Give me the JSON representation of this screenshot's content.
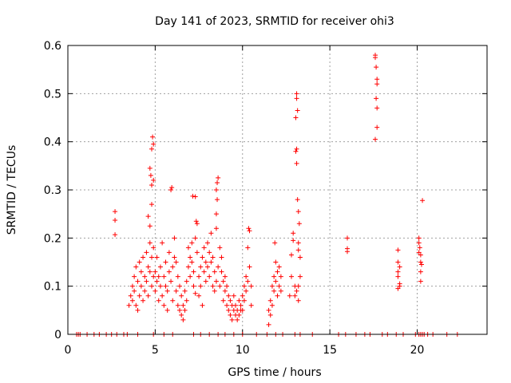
{
  "chart_data": {
    "type": "scatter",
    "title": "Day 141 of 2023, SRMTID for receiver ohi3",
    "xlabel": "GPS time / hours",
    "ylabel": "SRMTID / TECUs",
    "xlim": [
      0,
      24
    ],
    "ylim": [
      0,
      0.6
    ],
    "xticks": [
      0,
      5,
      10,
      15,
      20
    ],
    "yticks": [
      0,
      0.1,
      0.2,
      0.3,
      0.4,
      0.5,
      0.6
    ],
    "grid": true,
    "marker": "plus",
    "color": "#ff0000",
    "series": [
      {
        "name": "SRMTID",
        "points": [
          [
            0.5,
            0
          ],
          [
            0.6,
            0
          ],
          [
            0.7,
            0
          ],
          [
            1.1,
            0
          ],
          [
            1.5,
            0
          ],
          [
            1.8,
            0
          ],
          [
            2.2,
            0
          ],
          [
            2.5,
            0
          ],
          [
            2.8,
            0
          ],
          [
            3.2,
            0
          ],
          [
            3.4,
            0
          ],
          [
            4.0,
            0
          ],
          [
            4.9,
            0
          ],
          [
            5.5,
            0
          ],
          [
            6.0,
            0
          ],
          [
            7.2,
            0
          ],
          [
            7.6,
            0
          ],
          [
            8.1,
            0
          ],
          [
            8.6,
            0
          ],
          [
            9.0,
            0
          ],
          [
            9.5,
            0
          ],
          [
            10.0,
            0
          ],
          [
            10.8,
            0
          ],
          [
            11.4,
            0
          ],
          [
            11.9,
            0
          ],
          [
            12.3,
            0
          ],
          [
            13.0,
            0
          ],
          [
            13.3,
            0
          ],
          [
            14.0,
            0
          ],
          [
            15.5,
            0
          ],
          [
            15.9,
            0
          ],
          [
            16.5,
            0
          ],
          [
            17.0,
            0
          ],
          [
            17.3,
            0
          ],
          [
            18.0,
            0
          ],
          [
            18.3,
            0
          ],
          [
            18.8,
            0
          ],
          [
            19.2,
            0
          ],
          [
            19.9,
            0
          ],
          [
            20.1,
            0
          ],
          [
            20.2,
            0
          ],
          [
            20.3,
            0
          ],
          [
            20.4,
            0
          ],
          [
            20.6,
            0
          ],
          [
            20.9,
            0
          ],
          [
            21.7,
            0
          ],
          [
            22.3,
            0
          ],
          [
            2.7,
            0.255
          ],
          [
            2.7,
            0.237
          ],
          [
            2.7,
            0.207
          ],
          [
            3.5,
            0.06
          ],
          [
            3.6,
            0.08
          ],
          [
            3.7,
            0.07
          ],
          [
            3.7,
            0.1
          ],
          [
            3.8,
            0.09
          ],
          [
            3.8,
            0.12
          ],
          [
            3.9,
            0.06
          ],
          [
            3.9,
            0.14
          ],
          [
            4.0,
            0.11
          ],
          [
            4.0,
            0.05
          ],
          [
            4.1,
            0.08
          ],
          [
            4.1,
            0.15
          ],
          [
            4.2,
            0.1
          ],
          [
            4.2,
            0.13
          ],
          [
            4.3,
            0.07
          ],
          [
            4.3,
            0.16
          ],
          [
            4.4,
            0.12
          ],
          [
            4.4,
            0.09
          ],
          [
            4.5,
            0.11
          ],
          [
            4.5,
            0.17
          ],
          [
            4.6,
            0.14
          ],
          [
            4.6,
            0.08
          ],
          [
            4.7,
            0.13
          ],
          [
            4.7,
            0.19
          ],
          [
            4.8,
            0.16
          ],
          [
            4.8,
            0.1
          ],
          [
            4.9,
            0.12
          ],
          [
            4.9,
            0.18
          ],
          [
            4.6,
            0.245
          ],
          [
            4.7,
            0.345
          ],
          [
            4.75,
            0.33
          ],
          [
            4.8,
            0.31
          ],
          [
            4.8,
            0.385
          ],
          [
            4.85,
            0.41
          ],
          [
            4.9,
            0.395
          ],
          [
            4.9,
            0.32
          ],
          [
            4.8,
            0.27
          ],
          [
            4.7,
            0.225
          ],
          [
            5.0,
            0.13
          ],
          [
            5.0,
            0.09
          ],
          [
            5.1,
            0.11
          ],
          [
            5.1,
            0.16
          ],
          [
            5.2,
            0.07
          ],
          [
            5.2,
            0.12
          ],
          [
            5.3,
            0.1
          ],
          [
            5.3,
            0.14
          ],
          [
            5.4,
            0.08
          ],
          [
            5.4,
            0.19
          ],
          [
            5.5,
            0.12
          ],
          [
            5.5,
            0.06
          ],
          [
            5.6,
            0.1
          ],
          [
            5.6,
            0.15
          ],
          [
            5.7,
            0.05
          ],
          [
            5.7,
            0.09
          ],
          [
            5.8,
            0.17
          ],
          [
            5.8,
            0.13
          ],
          [
            5.9,
            0.3
          ],
          [
            5.95,
            0.305
          ],
          [
            5.9,
            0.11
          ],
          [
            6.0,
            0.07
          ],
          [
            6.0,
            0.14
          ],
          [
            6.1,
            0.16
          ],
          [
            6.1,
            0.2
          ],
          [
            6.2,
            0.09
          ],
          [
            6.2,
            0.15
          ],
          [
            6.3,
            0.12
          ],
          [
            6.3,
            0.06
          ],
          [
            6.4,
            0.1
          ],
          [
            6.4,
            0.05
          ],
          [
            6.5,
            0.08
          ],
          [
            6.5,
            0.04
          ],
          [
            6.6,
            0.06
          ],
          [
            6.6,
            0.03
          ],
          [
            6.7,
            0.09
          ],
          [
            6.7,
            0.05
          ],
          [
            6.8,
            0.11
          ],
          [
            6.8,
            0.07
          ],
          [
            6.9,
            0.14
          ],
          [
            6.9,
            0.18
          ],
          [
            7.0,
            0.12
          ],
          [
            7.0,
            0.16
          ],
          [
            7.1,
            0.19
          ],
          [
            7.1,
            0.15
          ],
          [
            7.2,
            0.1
          ],
          [
            7.2,
            0.13
          ],
          [
            7.3,
            0.085
          ],
          [
            7.3,
            0.2
          ],
          [
            7.35,
            0.235
          ],
          [
            7.4,
            0.23
          ],
          [
            7.4,
            0.17
          ],
          [
            7.5,
            0.12
          ],
          [
            7.5,
            0.08
          ],
          [
            7.6,
            0.14
          ],
          [
            7.6,
            0.1
          ],
          [
            7.7,
            0.06
          ],
          [
            7.7,
            0.16
          ],
          [
            7.8,
            0.18
          ],
          [
            7.8,
            0.13
          ],
          [
            7.9,
            0.11
          ],
          [
            7.9,
            0.15
          ],
          [
            8.0,
            0.19
          ],
          [
            8.0,
            0.14
          ],
          [
            8.1,
            0.12
          ],
          [
            8.1,
            0.17
          ],
          [
            8.2,
            0.15
          ],
          [
            8.2,
            0.21
          ],
          [
            8.3,
            0.1
          ],
          [
            8.3,
            0.16
          ],
          [
            8.4,
            0.13
          ],
          [
            8.4,
            0.09
          ],
          [
            8.5,
            0.11
          ],
          [
            8.5,
            0.22
          ],
          [
            8.5,
            0.25
          ],
          [
            8.55,
            0.28
          ],
          [
            8.5,
            0.3
          ],
          [
            8.55,
            0.315
          ],
          [
            8.6,
            0.325
          ],
          [
            8.6,
            0.14
          ],
          [
            8.7,
            0.18
          ],
          [
            8.7,
            0.1
          ],
          [
            8.8,
            0.13
          ],
          [
            8.8,
            0.16
          ],
          [
            8.9,
            0.11
          ],
          [
            8.9,
            0.07
          ],
          [
            7.15,
            0.287
          ],
          [
            7.3,
            0.286
          ],
          [
            9.0,
            0.09
          ],
          [
            9.0,
            0.12
          ],
          [
            9.1,
            0.06
          ],
          [
            9.1,
            0.1
          ],
          [
            9.2,
            0.08
          ],
          [
            9.2,
            0.05
          ],
          [
            9.3,
            0.07
          ],
          [
            9.3,
            0.04
          ],
          [
            9.4,
            0.06
          ],
          [
            9.4,
            0.03
          ],
          [
            9.5,
            0.05
          ],
          [
            9.5,
            0.08
          ],
          [
            9.6,
            0.04
          ],
          [
            9.6,
            0.06
          ],
          [
            9.7,
            0.03
          ],
          [
            9.7,
            0.05
          ],
          [
            9.8,
            0.04
          ],
          [
            9.8,
            0.07
          ],
          [
            9.9,
            0.05
          ],
          [
            9.9,
            0.06
          ],
          [
            10.0,
            0.08
          ],
          [
            10.0,
            0.05
          ],
          [
            10.1,
            0.1
          ],
          [
            10.1,
            0.07
          ],
          [
            10.2,
            0.09
          ],
          [
            10.2,
            0.12
          ],
          [
            10.3,
            0.11
          ],
          [
            10.3,
            0.18
          ],
          [
            10.35,
            0.22
          ],
          [
            10.4,
            0.215
          ],
          [
            10.4,
            0.14
          ],
          [
            10.5,
            0.1
          ],
          [
            10.5,
            0.06
          ],
          [
            11.5,
            0.02
          ],
          [
            11.5,
            0.05
          ],
          [
            11.6,
            0.04
          ],
          [
            11.6,
            0.07
          ],
          [
            11.7,
            0.06
          ],
          [
            11.7,
            0.1
          ],
          [
            11.8,
            0.09
          ],
          [
            11.8,
            0.12
          ],
          [
            11.85,
            0.19
          ],
          [
            11.9,
            0.15
          ],
          [
            11.9,
            0.11
          ],
          [
            12.0,
            0.13
          ],
          [
            12.0,
            0.08
          ],
          [
            12.1,
            0.1
          ],
          [
            12.1,
            0.14
          ],
          [
            12.2,
            0.12
          ],
          [
            12.2,
            0.09
          ],
          [
            12.7,
            0.08
          ],
          [
            12.8,
            0.12
          ],
          [
            12.8,
            0.165
          ],
          [
            12.9,
            0.195
          ],
          [
            12.9,
            0.21
          ],
          [
            13.0,
            0.1
          ],
          [
            13.0,
            0.08
          ],
          [
            13.05,
            0.45
          ],
          [
            13.1,
            0.49
          ],
          [
            13.1,
            0.5
          ],
          [
            13.15,
            0.465
          ],
          [
            13.05,
            0.38
          ],
          [
            13.1,
            0.385
          ],
          [
            13.1,
            0.355
          ],
          [
            13.15,
            0.28
          ],
          [
            13.2,
            0.255
          ],
          [
            13.25,
            0.23
          ],
          [
            13.2,
            0.19
          ],
          [
            13.2,
            0.175
          ],
          [
            13.3,
            0.16
          ],
          [
            13.3,
            0.12
          ],
          [
            13.2,
            0.1
          ],
          [
            13.1,
            0.09
          ],
          [
            13.2,
            0.07
          ],
          [
            16.0,
            0.2
          ],
          [
            16.0,
            0.178
          ],
          [
            16.0,
            0.172
          ],
          [
            17.6,
            0.58
          ],
          [
            17.6,
            0.575
          ],
          [
            17.65,
            0.555
          ],
          [
            17.7,
            0.53
          ],
          [
            17.7,
            0.52
          ],
          [
            17.65,
            0.49
          ],
          [
            17.7,
            0.47
          ],
          [
            17.7,
            0.43
          ],
          [
            17.6,
            0.405
          ],
          [
            18.9,
            0.175
          ],
          [
            18.9,
            0.15
          ],
          [
            19.0,
            0.14
          ],
          [
            18.9,
            0.13
          ],
          [
            18.9,
            0.12
          ],
          [
            19.0,
            0.105
          ],
          [
            19.0,
            0.1
          ],
          [
            18.9,
            0.095
          ],
          [
            20.1,
            0.2
          ],
          [
            20.1,
            0.19
          ],
          [
            20.15,
            0.18
          ],
          [
            20.1,
            0.17
          ],
          [
            20.2,
            0.165
          ],
          [
            20.2,
            0.15
          ],
          [
            20.25,
            0.145
          ],
          [
            20.3,
            0.278
          ],
          [
            20.2,
            0.13
          ],
          [
            20.2,
            0.11
          ]
        ]
      }
    ]
  }
}
